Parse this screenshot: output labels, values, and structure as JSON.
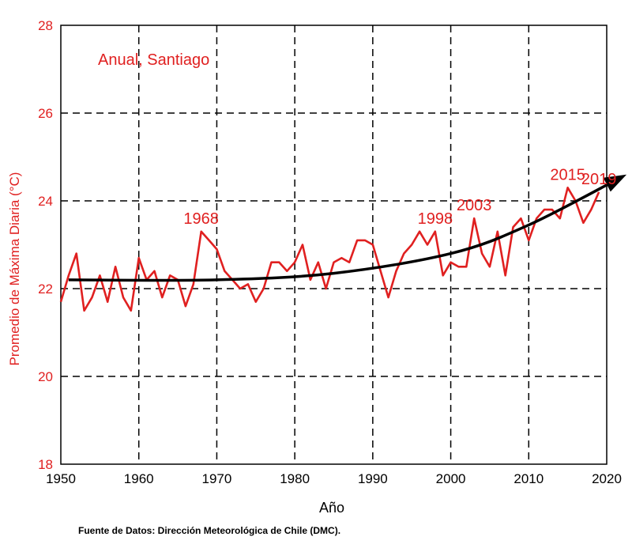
{
  "chart_data": {
    "type": "line",
    "title": "Anual, Santiago",
    "xlabel": "Año",
    "ylabel": "Promedio de Máxima Diaria  (°C)",
    "source": "Fuente de Datos: Dirección Meteorológica de Chile (DMC).",
    "xlim": [
      1950,
      2020
    ],
    "ylim": [
      18,
      28
    ],
    "x_ticks": [
      1950,
      1960,
      1970,
      1980,
      1990,
      2000,
      2010,
      2020
    ],
    "y_ticks": [
      18,
      20,
      22,
      24,
      26,
      28
    ],
    "grid": true,
    "colors": {
      "series": "#e02020",
      "trend": "#000000",
      "axis_text": "#e02020"
    },
    "series": [
      {
        "values": [
          [
            1950,
            21.7
          ],
          [
            1951,
            22.3
          ],
          [
            1952,
            22.8
          ],
          [
            1953,
            21.5
          ],
          [
            1954,
            21.8
          ],
          [
            1955,
            22.3
          ],
          [
            1956,
            21.7
          ],
          [
            1957,
            22.5
          ],
          [
            1958,
            21.8
          ],
          [
            1959,
            21.5
          ],
          [
            1960,
            22.7
          ],
          [
            1961,
            22.2
          ],
          [
            1962,
            22.4
          ],
          [
            1963,
            21.8
          ],
          [
            1964,
            22.3
          ],
          [
            1965,
            22.2
          ],
          [
            1966,
            21.6
          ],
          [
            1967,
            22.1
          ],
          [
            1968,
            23.3
          ],
          [
            1969,
            23.1
          ],
          [
            1970,
            22.9
          ],
          [
            1971,
            22.4
          ],
          [
            1972,
            22.2
          ],
          [
            1973,
            22.0
          ],
          [
            1974,
            22.1
          ],
          [
            1975,
            21.7
          ],
          [
            1976,
            22.0
          ],
          [
            1977,
            22.6
          ],
          [
            1978,
            22.6
          ],
          [
            1979,
            22.4
          ],
          [
            1980,
            22.6
          ],
          [
            1981,
            23.0
          ],
          [
            1982,
            22.2
          ],
          [
            1983,
            22.6
          ],
          [
            1984,
            22.0
          ],
          [
            1985,
            22.6
          ],
          [
            1986,
            22.7
          ],
          [
            1987,
            22.6
          ],
          [
            1988,
            23.1
          ],
          [
            1989,
            23.1
          ],
          [
            1990,
            23.0
          ],
          [
            1991,
            22.4
          ],
          [
            1992,
            21.8
          ],
          [
            1993,
            22.4
          ],
          [
            1994,
            22.8
          ],
          [
            1995,
            23.0
          ],
          [
            1996,
            23.3
          ],
          [
            1997,
            23.0
          ],
          [
            1998,
            23.3
          ],
          [
            1999,
            22.3
          ],
          [
            2000,
            22.6
          ],
          [
            2001,
            22.5
          ],
          [
            2002,
            22.5
          ],
          [
            2003,
            23.6
          ],
          [
            2004,
            22.8
          ],
          [
            2005,
            22.5
          ],
          [
            2006,
            23.3
          ],
          [
            2007,
            22.3
          ],
          [
            2008,
            23.4
          ],
          [
            2009,
            23.6
          ],
          [
            2010,
            23.1
          ],
          [
            2011,
            23.6
          ],
          [
            2012,
            23.8
          ],
          [
            2013,
            23.8
          ],
          [
            2014,
            23.6
          ],
          [
            2015,
            24.3
          ],
          [
            2016,
            24.0
          ],
          [
            2017,
            23.5
          ],
          [
            2018,
            23.8
          ],
          [
            2019,
            24.2
          ]
        ]
      }
    ],
    "trend": {
      "points": [
        [
          1951,
          22.2
        ],
        [
          1970,
          22.2
        ],
        [
          1985,
          22.35
        ],
        [
          2000,
          22.8
        ],
        [
          2010,
          23.45
        ],
        [
          2022,
          24.55
        ]
      ]
    },
    "annotations": [
      {
        "text": "1968",
        "x": 1968,
        "y": 23.3
      },
      {
        "text": "1998",
        "x": 1998,
        "y": 23.3
      },
      {
        "text": "2003",
        "x": 2003,
        "y": 23.6
      },
      {
        "text": "2015",
        "x": 2015,
        "y": 24.3
      },
      {
        "text": "2019",
        "x": 2019,
        "y": 24.2
      }
    ]
  }
}
